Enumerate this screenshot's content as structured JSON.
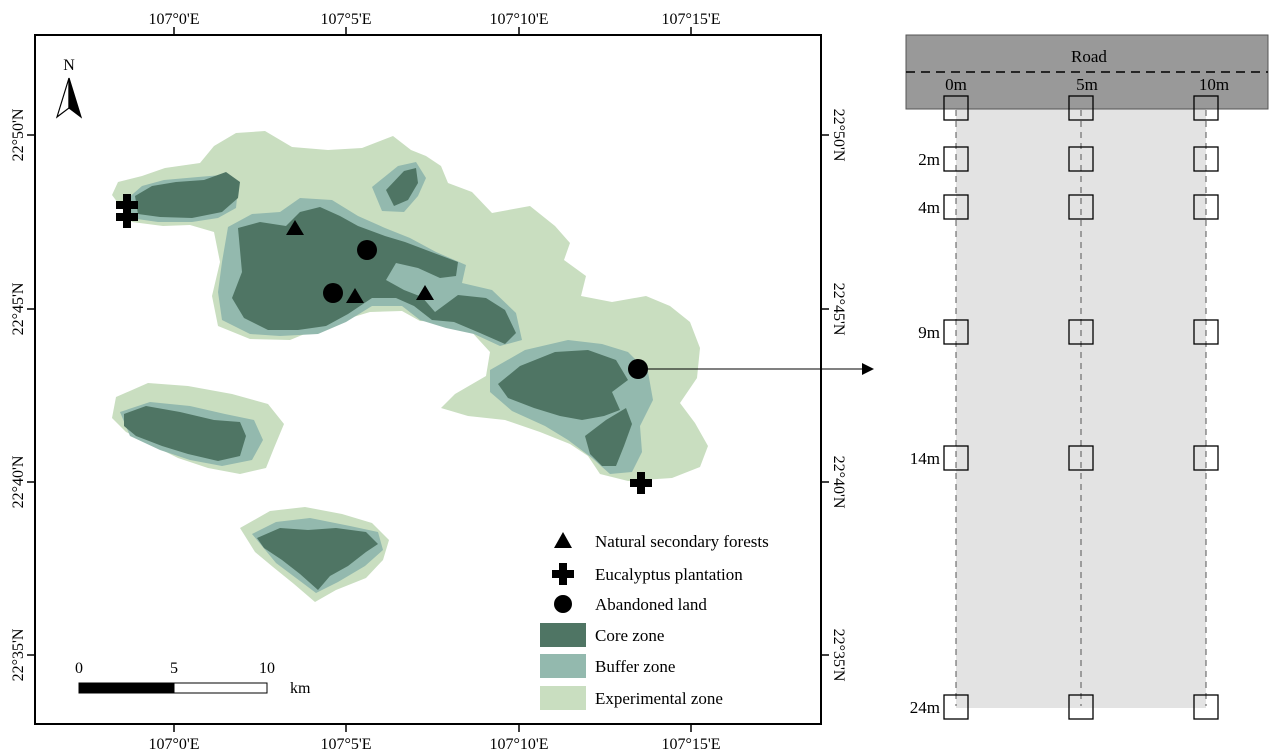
{
  "colors": {
    "core_zone": "#4f7564",
    "buffer_zone": "#93b9ae",
    "experimental_zone": "#c9dec0",
    "road": "#999999",
    "plot_area": "#e3e3e3"
  },
  "map": {
    "north_label": "N",
    "top_ticks": [
      "107°0'E",
      "107°5'E",
      "107°10'E",
      "107°15'E"
    ],
    "bottom_ticks": [
      "107°0'E",
      "107°5'E",
      "107°10'E",
      "107°15'E"
    ],
    "left_ticks": [
      "22°50'N",
      "22°45'N",
      "22°40'N",
      "22°35'N"
    ],
    "right_ticks": [
      "22°50'N",
      "22°45'N",
      "22°40'N",
      "22°35'N"
    ],
    "scale_labels": [
      "0",
      "5",
      "10"
    ],
    "scale_unit": "km"
  },
  "legend": [
    {
      "symbol": "triangle-icon",
      "label": "Natural secondary forests"
    },
    {
      "symbol": "cross-icon",
      "label": "Eucalyptus plantation"
    },
    {
      "symbol": "circle-icon",
      "label": "Abandoned land"
    },
    {
      "symbol": "core-swatch",
      "label": "Core zone"
    },
    {
      "symbol": "buffer-swatch",
      "label": "Buffer zone"
    },
    {
      "symbol": "experimental-swatch",
      "label": "Experimental zone"
    }
  ],
  "plot_design": {
    "road_label": "Road",
    "column_labels": [
      "0m",
      "5m",
      "10m"
    ],
    "row_labels": [
      "",
      "2m",
      "4m",
      "9m",
      "14m",
      "24m"
    ]
  }
}
